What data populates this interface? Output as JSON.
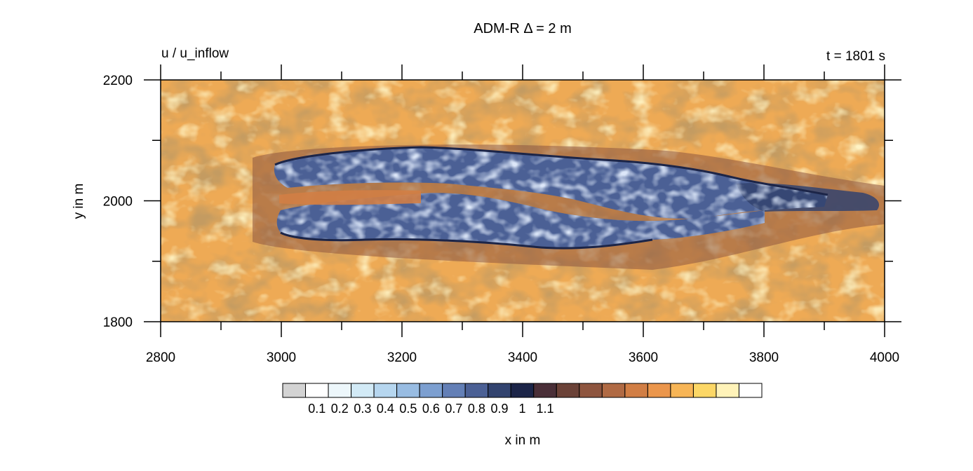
{
  "chart_data": {
    "type": "heatmap",
    "title": "ADM-R Δ = 2 m",
    "subtitle_left": "u / u_inflow",
    "subtitle_right": "t = 1801 s",
    "xlabel": "x in m",
    "ylabel": "y in m",
    "xlim": [
      2800,
      4000
    ],
    "ylim": [
      1800,
      2200
    ],
    "x_ticks": [
      "2800",
      "3000",
      "3200",
      "3400",
      "3600",
      "3800",
      "4000"
    ],
    "y_ticks": [
      "1800",
      "2000",
      "2200"
    ],
    "colorbar": {
      "labels": [
        "0.1",
        "0.2",
        "0.3",
        "0.4",
        "0.5",
        "0.6",
        "0.7",
        "0.8",
        "0.9",
        "1",
        "1.1"
      ],
      "colors": [
        "#d3d3d3",
        "#ffffff",
        "#edf7fb",
        "#d2eaf6",
        "#b6d6ef",
        "#98bce2",
        "#7c9fd0",
        "#637fb6",
        "#4b6095",
        "#32436f",
        "#1c2548",
        "#4a2f38",
        "#6b4238",
        "#8e553f",
        "#b06a44",
        "#d17e45",
        "#eb964c",
        "#f7b556",
        "#fcd766",
        "#fff3b9",
        "#ffffff"
      ]
    },
    "field_description_colors": {
      "background": "#eeaa55",
      "wake": "#4b6095"
    }
  }
}
